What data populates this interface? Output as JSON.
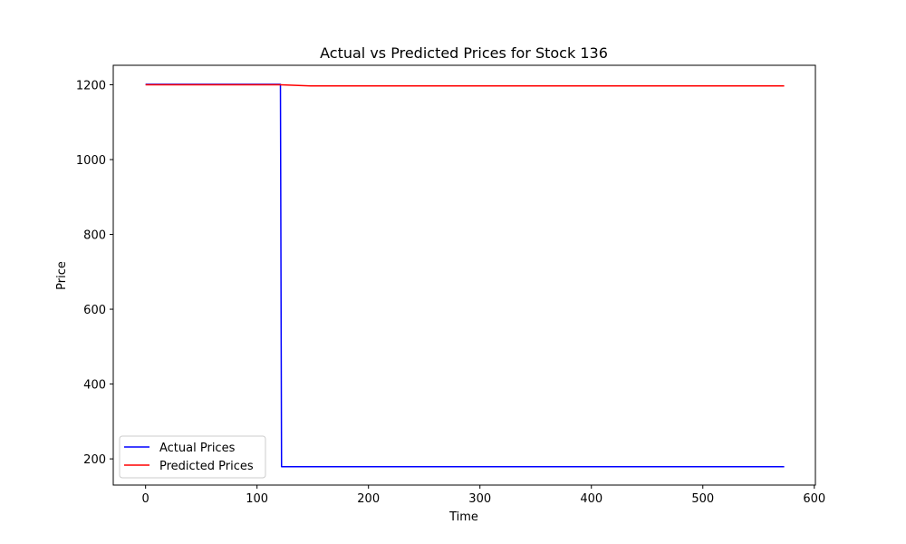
{
  "chart_data": {
    "type": "line",
    "title": "Actual vs Predicted Prices for Stock 136",
    "xlabel": "Time",
    "ylabel": "Price",
    "xlim": [
      -29,
      601
    ],
    "ylim": [
      130,
      1252
    ],
    "xticks": [
      0,
      100,
      200,
      300,
      400,
      500,
      600
    ],
    "yticks": [
      200,
      400,
      600,
      800,
      1000,
      1200
    ],
    "grid": false,
    "legend_position": "lower-left",
    "series": [
      {
        "name": "Actual Prices",
        "color": "#0000ff",
        "points": [
          [
            0,
            1201
          ],
          [
            121,
            1201
          ],
          [
            122,
            179
          ],
          [
            573,
            179
          ]
        ]
      },
      {
        "name": "Predicted Prices",
        "color": "#ff0000",
        "points": [
          [
            0,
            1200
          ],
          [
            121,
            1200
          ],
          [
            148,
            1197
          ],
          [
            573,
            1197
          ]
        ]
      }
    ]
  }
}
